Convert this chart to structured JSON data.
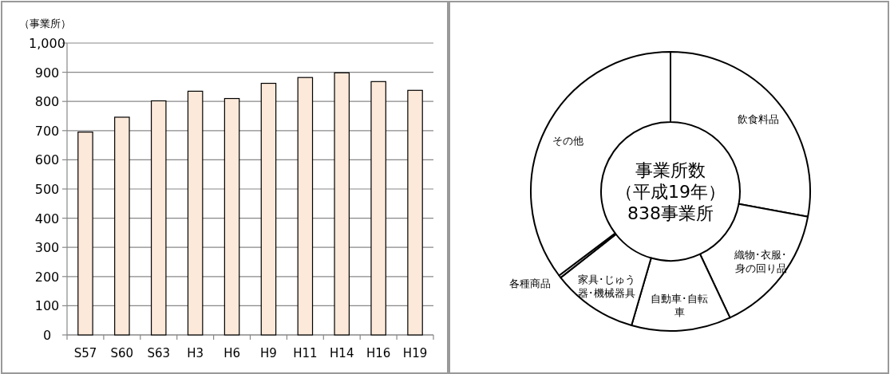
{
  "chart_data": [
    {
      "type": "bar",
      "ylabel": "（事業所）",
      "categories": [
        "S57",
        "S60",
        "S63",
        "H3",
        "H6",
        "H9",
        "H11",
        "H14",
        "H16",
        "H19"
      ],
      "values": [
        695,
        746,
        802,
        835,
        810,
        862,
        882,
        898,
        868,
        838
      ],
      "color": "#fde9d9",
      "ylim": [
        0,
        1000
      ],
      "yticks": [
        0,
        100,
        200,
        300,
        400,
        500,
        600,
        700,
        800,
        900,
        {
          "value": 1000,
          "label": "1,000"
        }
      ],
      "grid": "y"
    },
    {
      "type": "donut",
      "title": "事業所数",
      "subtitle": "（平成19年）",
      "annotations": [
        "838事業所"
      ],
      "categories": [
        "飲食料品",
        "織物･衣服･身の回り品",
        "自動車･自転車",
        "家具･じゅう器･機械器具",
        "各種商品",
        "その他"
      ],
      "values": [
        27.9,
        15.1,
        11.5,
        9.9,
        0.3,
        35.3
      ],
      "colors": [
        "#ffffff",
        "#ffffff",
        "#ffffff",
        "#ffffff",
        "#ffffff",
        "#ffffff"
      ]
    }
  ]
}
